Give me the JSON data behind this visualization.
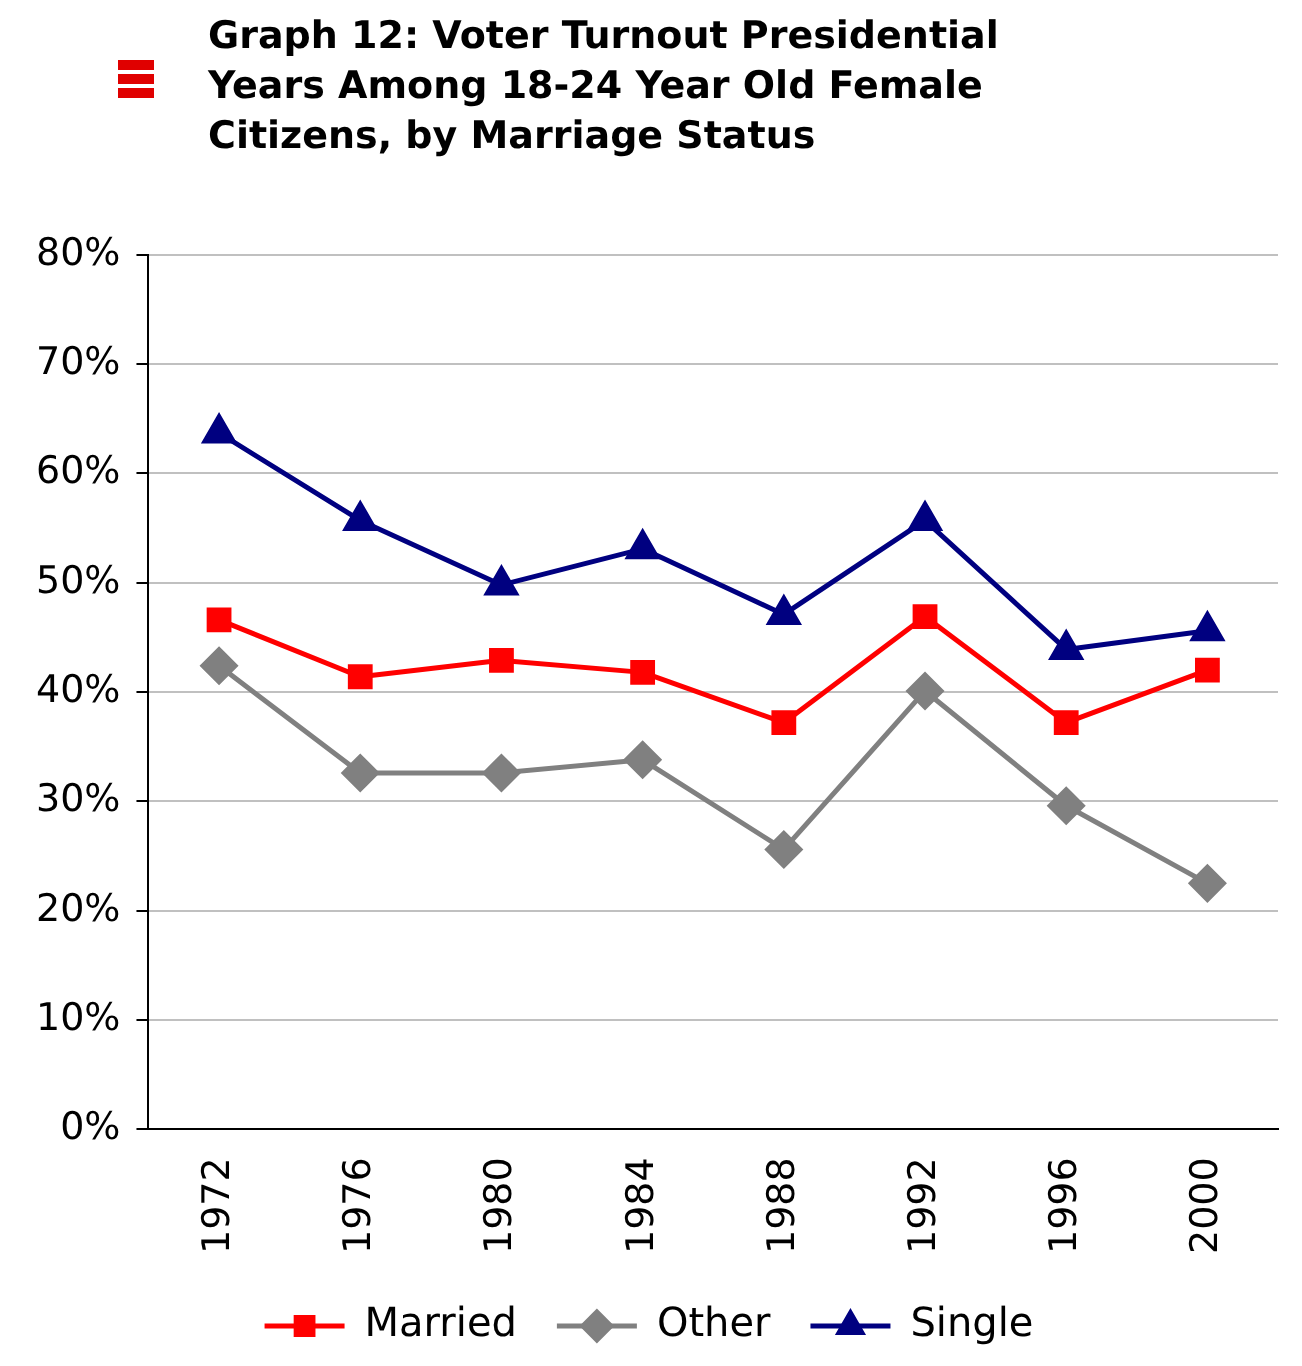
{
  "chart_data": {
    "type": "line",
    "title": "Graph 12: Voter Turnout Presidential Years Among 18-24 Year Old Female Citizens, by Marriage Status",
    "categories": [
      "1972",
      "1976",
      "1980",
      "1984",
      "1988",
      "1992",
      "1996",
      "2000"
    ],
    "series": [
      {
        "name": "Married",
        "color": "#ff0000",
        "marker": "square",
        "values": [
          0.466,
          0.414,
          0.429,
          0.418,
          0.372,
          0.469,
          0.372,
          0.42
        ]
      },
      {
        "name": "Other",
        "color": "#808080",
        "marker": "diamond",
        "values": [
          0.424,
          0.326,
          0.326,
          0.338,
          0.256,
          0.401,
          0.296,
          0.225
        ]
      },
      {
        "name": "Single",
        "color": "#000080",
        "marker": "triangle",
        "values": [
          0.637,
          0.557,
          0.498,
          0.531,
          0.471,
          0.557,
          0.439,
          0.456
        ]
      }
    ],
    "ylim": [
      0,
      0.8
    ],
    "yticks": [
      {
        "value": 0,
        "label": "0%"
      },
      {
        "value": 0.1,
        "label": "10%"
      },
      {
        "value": 0.2,
        "label": "20%"
      },
      {
        "value": 0.3,
        "label": "30%"
      },
      {
        "value": 0.4,
        "label": "40%"
      },
      {
        "value": 0.5,
        "label": "50%"
      },
      {
        "value": 0.6,
        "label": "60%"
      },
      {
        "value": 0.7,
        "label": "70%"
      },
      {
        "value": 0.8,
        "label": "80%"
      }
    ],
    "grid": "y",
    "legend": "bottom"
  }
}
